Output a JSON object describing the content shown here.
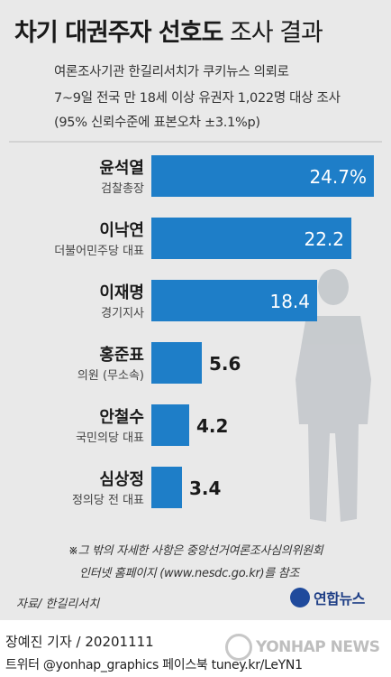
{
  "header": {
    "title_bold": "차기 대권주자 선호도",
    "title_light": "조사 결과",
    "sub1": "여론조사기관 한길리서치가 쿠키뉴스 의뢰로",
    "sub2": "7~9일 전국 만 18세 이상 유권자 1,022명 대상 조사",
    "sub3": "(95% 신뢰수준에 표본오차 ±3.1%p)"
  },
  "chart_data": {
    "type": "bar",
    "orientation": "horizontal",
    "categories": [
      "윤석열",
      "이낙연",
      "이재명",
      "홍준표",
      "안철수",
      "심상정"
    ],
    "roles": [
      "검찰총장",
      "더불어민주당 대표",
      "경기지사",
      "의원 (무소속)",
      "국민의당 대표",
      "정의당 전 대표"
    ],
    "values": [
      24.7,
      22.2,
      18.4,
      5.6,
      4.2,
      3.4
    ],
    "value_labels": [
      "24.7%",
      "22.2",
      "18.4",
      "5.6",
      "4.2",
      "3.4"
    ],
    "unit": "%",
    "bar_color": "#1e7ec8",
    "xlim": [
      0,
      25
    ],
    "grid": false
  },
  "footer": {
    "note1": "※그 밖의 자세한 사항은 중앙선거여론조사심의위원회",
    "note2": "인터넷 홈페이지 (www.nesdc.go.kr)를 참조",
    "source": "자료/ 한길리서치",
    "logo": "연합뉴스",
    "credit": "장예진 기자 / 20201111",
    "social": "트위터 @yonhap_graphics  페이스북 tuney.kr/LeYN1",
    "watermark": "YONHAP NEWS"
  }
}
